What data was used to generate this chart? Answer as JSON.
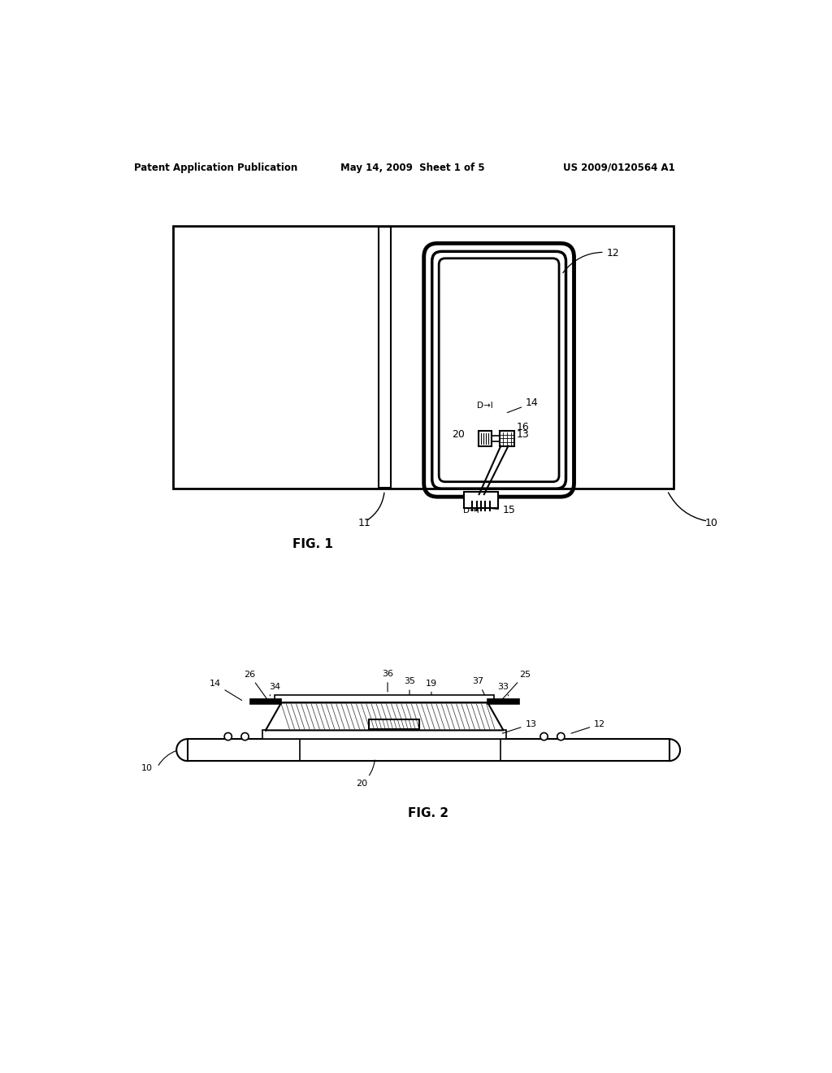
{
  "header_left": "Patent Application Publication",
  "header_mid": "May 14, 2009  Sheet 1 of 5",
  "header_right": "US 2009/0120564 A1",
  "fig1_label": "FIG. 1",
  "fig2_label": "FIG. 2",
  "bg_color": "#ffffff",
  "line_color": "#000000"
}
